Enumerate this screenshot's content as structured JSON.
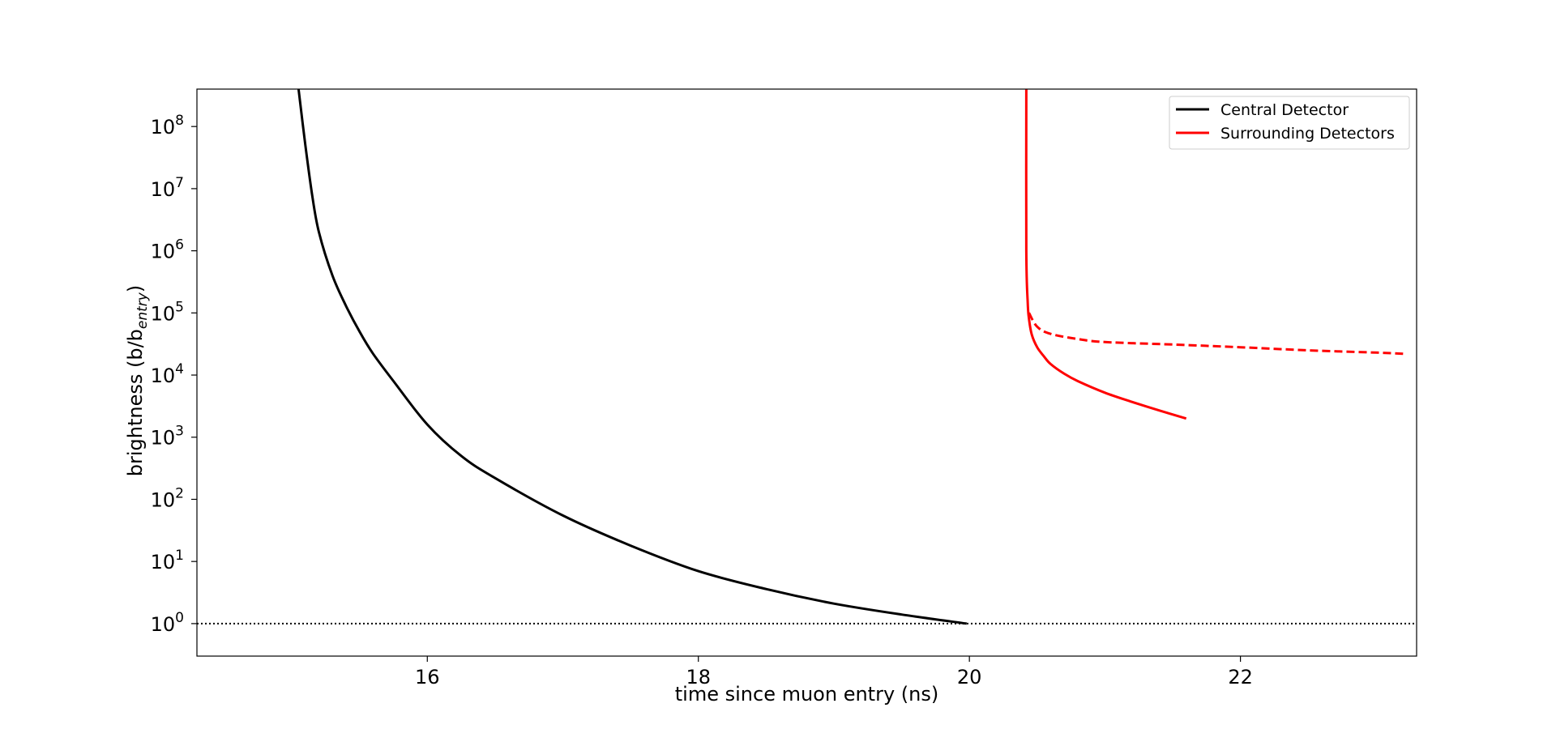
{
  "chart_data": {
    "type": "line",
    "xlabel": "time since muon entry (ns)",
    "ylabel": "brightness (b/b",
    "ylabel_sub": "entry",
    "ylabel_close": ")",
    "y_scale": "log",
    "xlim": [
      14.3,
      23.3
    ],
    "ylim": [
      0.3,
      400000000
    ],
    "xticks": [
      16,
      18,
      20,
      22
    ],
    "xtick_labels": [
      "16",
      "18",
      "20",
      "22"
    ],
    "yticks": [
      1,
      10,
      100,
      1000,
      10000,
      100000,
      1000000,
      10000000,
      100000000
    ],
    "ytick_base": "10",
    "ytick_exponents": [
      "0",
      "1",
      "2",
      "3",
      "4",
      "5",
      "6",
      "7",
      "8"
    ],
    "grid": false,
    "legend_position": "top-right",
    "legend": [
      {
        "label": "Central Detector",
        "color": "#000000"
      },
      {
        "label": "Surrounding Detectors",
        "color": "#ff0000"
      }
    ],
    "reference_line": {
      "y": 1,
      "style": "dotted",
      "color": "#000000"
    },
    "series": [
      {
        "name": "Central Detector",
        "color": "#000000",
        "style": "solid",
        "x": [
          15.05,
          15.1,
          15.15,
          15.2,
          15.3,
          15.4,
          15.5,
          15.6,
          15.75,
          16.0,
          16.25,
          16.5,
          17.0,
          17.5,
          18.0,
          18.5,
          19.0,
          19.5,
          19.98
        ],
        "y": [
          400000000,
          50000000,
          8000000,
          2000000,
          400000,
          130000,
          50000,
          22000,
          8000,
          1600,
          500,
          220,
          55,
          18,
          7,
          3.6,
          2.1,
          1.4,
          1
        ]
      },
      {
        "name": "",
        "color": "#ff0000",
        "style": "solid",
        "x": [
          20.42,
          20.42,
          20.43,
          20.44,
          20.46,
          20.5,
          20.55,
          20.6,
          20.7,
          20.8,
          21.0,
          21.2,
          21.4,
          21.6
        ],
        "y": [
          400000000,
          1000000,
          150000,
          80000,
          45000,
          28000,
          20000,
          15000,
          10500,
          8000,
          5200,
          3700,
          2700,
          2000
        ]
      },
      {
        "name": "",
        "color": "#ff0000",
        "style": "dashed",
        "x": [
          20.44,
          20.5,
          20.6,
          20.8,
          21.0,
          21.5,
          22.0,
          22.5,
          23.0,
          23.2
        ],
        "y": [
          100000,
          60000,
          46000,
          38000,
          34000,
          31000,
          28000,
          25000,
          23000,
          22000
        ]
      }
    ]
  }
}
